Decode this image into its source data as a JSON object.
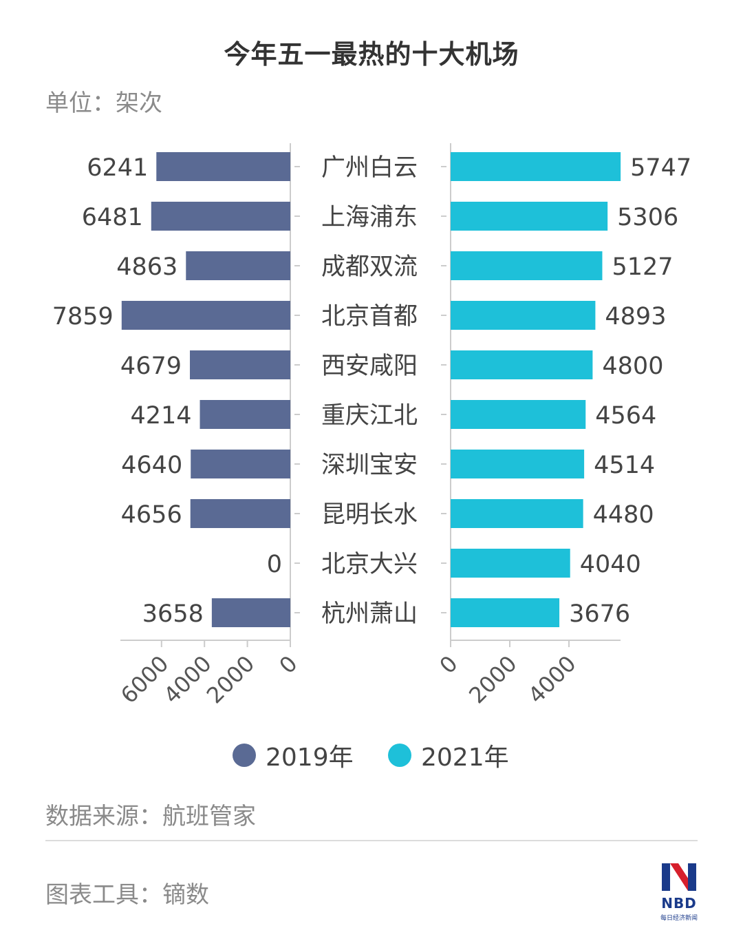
{
  "title": "今年五一最热的十大机场",
  "unit": "单位：架次",
  "source": "数据来源：航班管家",
  "tool": "图表工具：镝数",
  "logo": {
    "text": "NBD",
    "sub": "每日经济新闻"
  },
  "colors": {
    "series_2019": "#5a6a94",
    "series_2021": "#1ec0d9",
    "axis": "#cccccc"
  },
  "chart_data": {
    "type": "bar",
    "orientation": "horizontal-butterfly",
    "categories": [
      "广州白云",
      "上海浦东",
      "成都双流",
      "北京首都",
      "西安咸阳",
      "重庆江北",
      "深圳宝安",
      "昆明长水",
      "北京大兴",
      "杭州萧山"
    ],
    "series": [
      {
        "name": "2019年",
        "values": [
          6241,
          6481,
          4863,
          7859,
          4679,
          4214,
          4640,
          4656,
          0,
          3658
        ]
      },
      {
        "name": "2021年",
        "values": [
          5747,
          5306,
          5127,
          4893,
          4800,
          4564,
          4514,
          4480,
          4040,
          3676
        ]
      }
    ],
    "left_axis": {
      "ticks": [
        "6000",
        "4000",
        "2000",
        "0"
      ],
      "max": 8000
    },
    "right_axis": {
      "ticks": [
        "0",
        "2000",
        "4000"
      ],
      "max": 6000
    },
    "legend": [
      "2019年",
      "2021年"
    ],
    "legend_position": "bottom"
  }
}
